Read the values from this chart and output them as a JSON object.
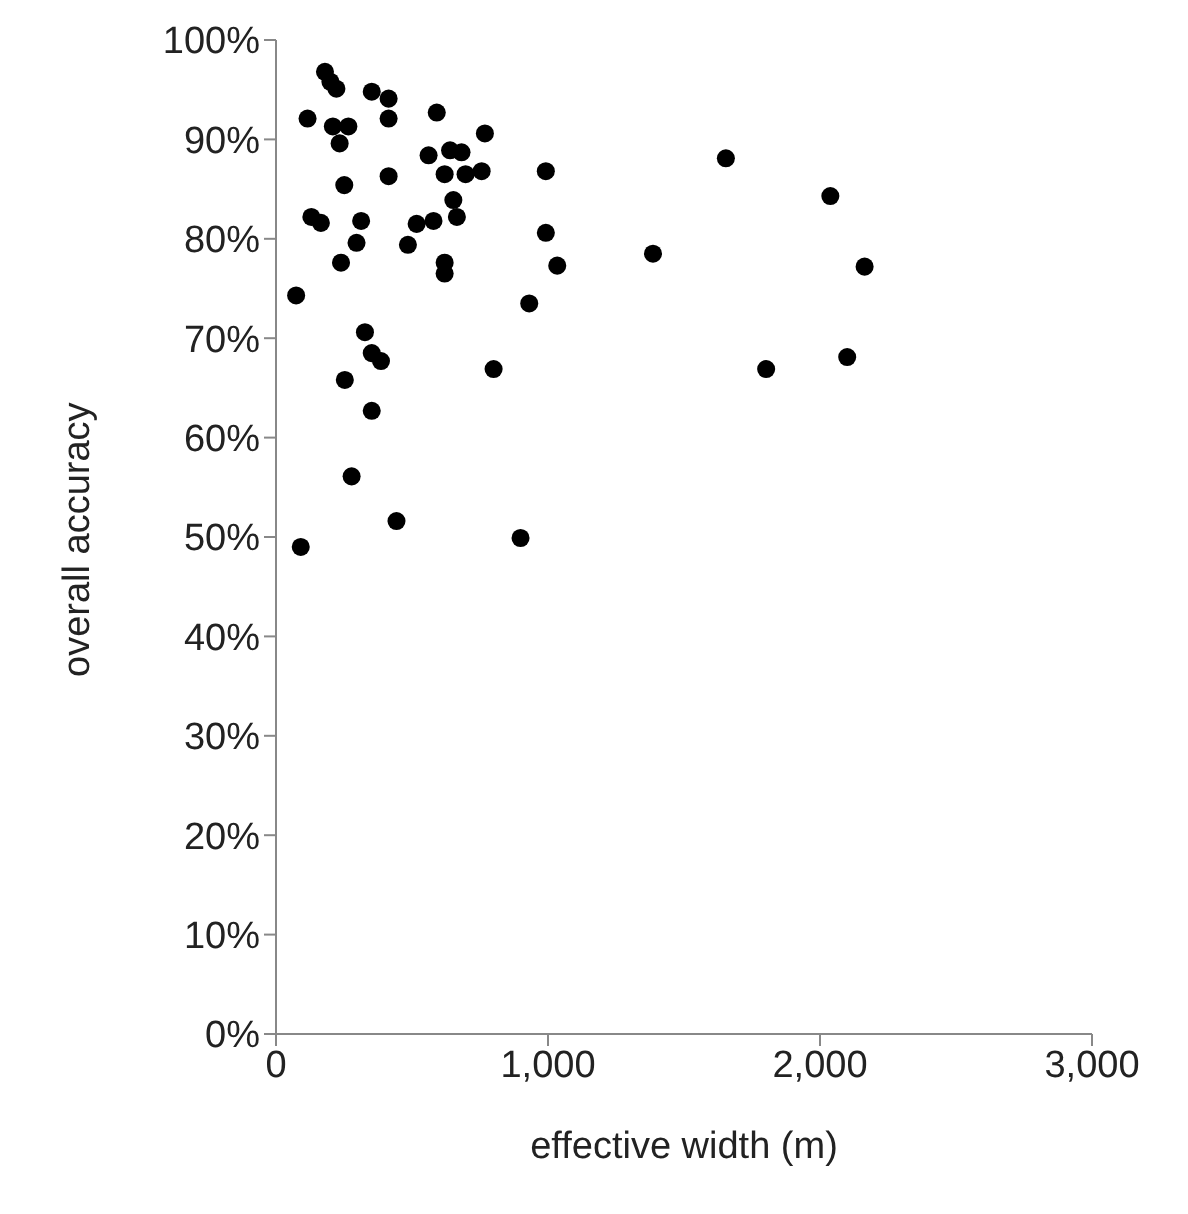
{
  "chart_data": {
    "type": "scatter",
    "xlabel": "effective width (m)",
    "ylabel": "overall accuracy",
    "xlim": [
      0,
      3000
    ],
    "xticks": [
      0,
      {
        "value": 1000,
        "label": "1,000"
      },
      {
        "value": 2000,
        "label": "2,000"
      },
      {
        "value": 3000,
        "label": "3,000"
      }
    ],
    "ylim": [
      0,
      100
    ],
    "yticks": [
      {
        "value": 0,
        "label": "0%"
      },
      {
        "value": 10,
        "label": "10%"
      },
      {
        "value": 20,
        "label": "20%"
      },
      {
        "value": 30,
        "label": "30%"
      },
      {
        "value": 40,
        "label": "40%"
      },
      {
        "value": 50,
        "label": "50%"
      },
      {
        "value": 60,
        "label": "60%"
      },
      {
        "value": 70,
        "label": "70%"
      },
      {
        "value": 80,
        "label": "80%"
      },
      {
        "value": 90,
        "label": "90%"
      },
      {
        "value": 100,
        "label": "100%"
      }
    ],
    "grid": false,
    "marker": "circle",
    "series": [
      {
        "color": "#000000",
        "x": [
          180,
          200,
          222,
          352,
          414,
          414,
          116,
          209,
          266,
          234,
          591,
          768,
          561,
          640,
          682,
          620,
          697,
          756,
          414,
          251,
          992,
          652,
          665,
          130,
          165,
          313,
          517,
          579,
          296,
          485,
          992,
          239,
          620,
          620,
          1034,
          74,
          931,
          327,
          352,
          386,
          800,
          253,
          352,
          278,
          443,
          91,
          899,
          1654,
          2038,
          1386,
          2164,
          1802,
          2100
        ],
        "values": [
          96.8,
          95.8,
          95.1,
          94.8,
          94.1,
          92.1,
          92.1,
          91.3,
          91.3,
          89.6,
          92.7,
          90.6,
          88.4,
          88.9,
          88.7,
          86.5,
          86.5,
          86.8,
          86.3,
          85.4,
          86.8,
          83.9,
          82.2,
          82.2,
          81.6,
          81.8,
          81.5,
          81.8,
          79.6,
          79.4,
          80.6,
          77.6,
          77.6,
          76.5,
          77.3,
          74.3,
          73.5,
          70.6,
          68.5,
          67.7,
          66.9,
          65.8,
          62.7,
          56.1,
          51.6,
          49.0,
          49.9,
          88.1,
          84.3,
          78.5,
          77.2,
          66.9,
          68.1
        ]
      }
    ]
  }
}
